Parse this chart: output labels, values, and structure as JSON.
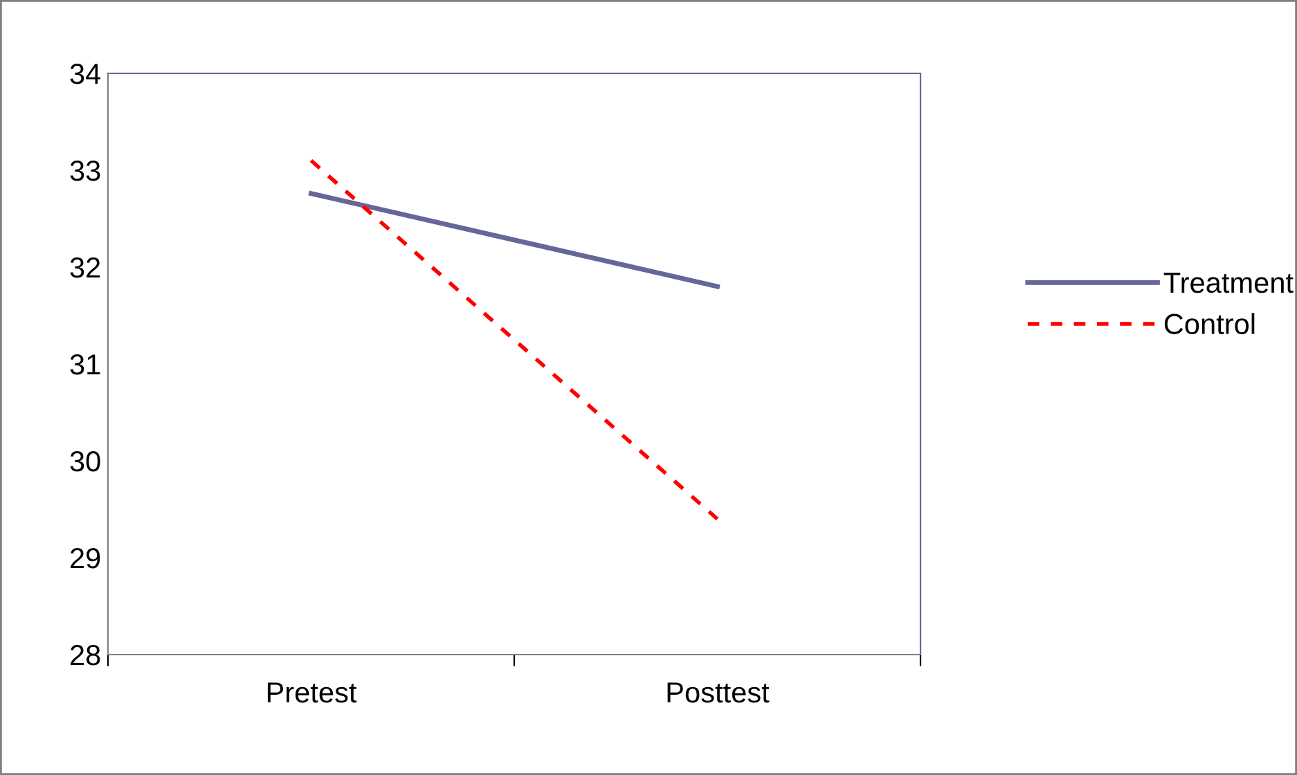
{
  "chart_data": {
    "type": "line",
    "categories": [
      "Pretest",
      "Posttest"
    ],
    "series": [
      {
        "name": "Treatment",
        "color": "#666699",
        "values": [
          32.76,
          31.8
        ],
        "line_style": "solid"
      },
      {
        "name": "Control",
        "color": "#ff0000",
        "values": [
          33.1,
          29.4
        ],
        "line_style": "dashed"
      }
    ],
    "ylim": [
      28,
      34
    ],
    "yticks": [
      28,
      29,
      30,
      31,
      32,
      33,
      34
    ],
    "grid": false,
    "legend": "right",
    "marker": "none"
  }
}
